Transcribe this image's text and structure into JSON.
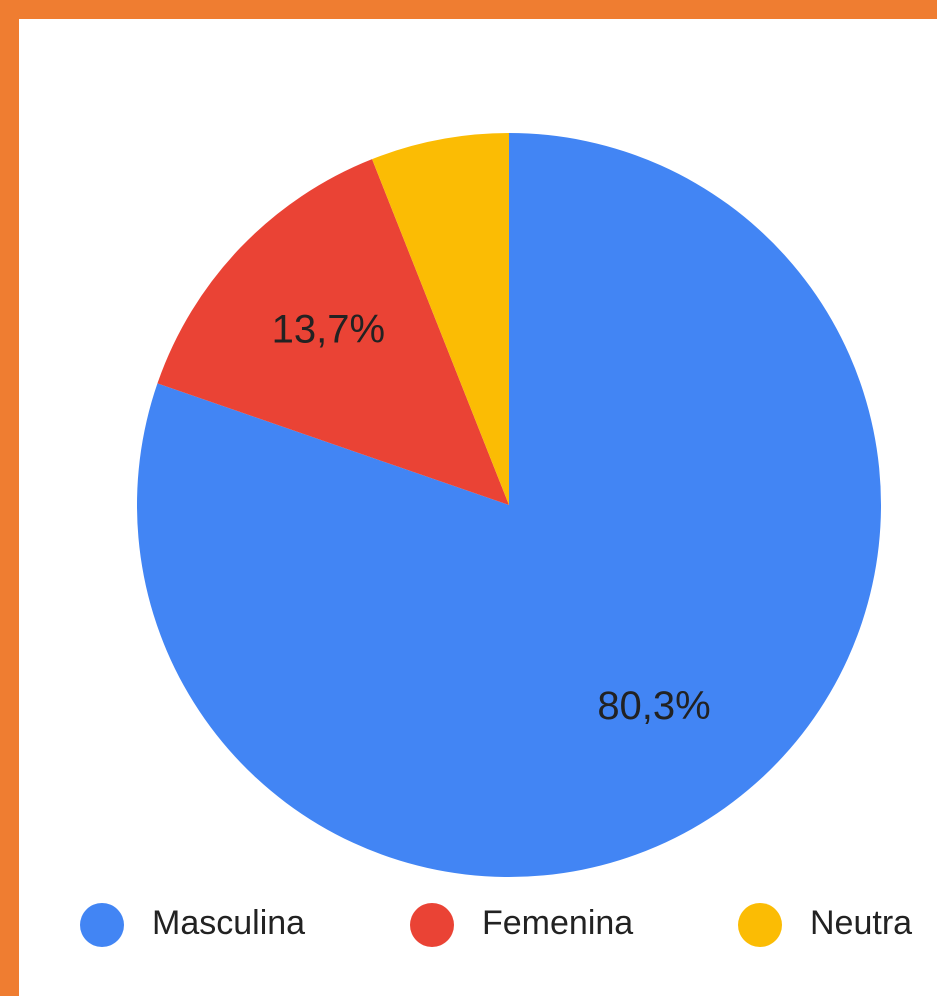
{
  "chart_data": {
    "type": "pie",
    "categories": [
      "Masculina",
      "Femenina",
      "Neutra"
    ],
    "values": [
      80.3,
      13.7,
      6.0
    ],
    "value_labels": [
      "80,3%",
      "13,7%",
      null
    ],
    "colors": [
      "#4285f4",
      "#ea4335",
      "#fbbc04"
    ],
    "legend": "bottom"
  }
}
